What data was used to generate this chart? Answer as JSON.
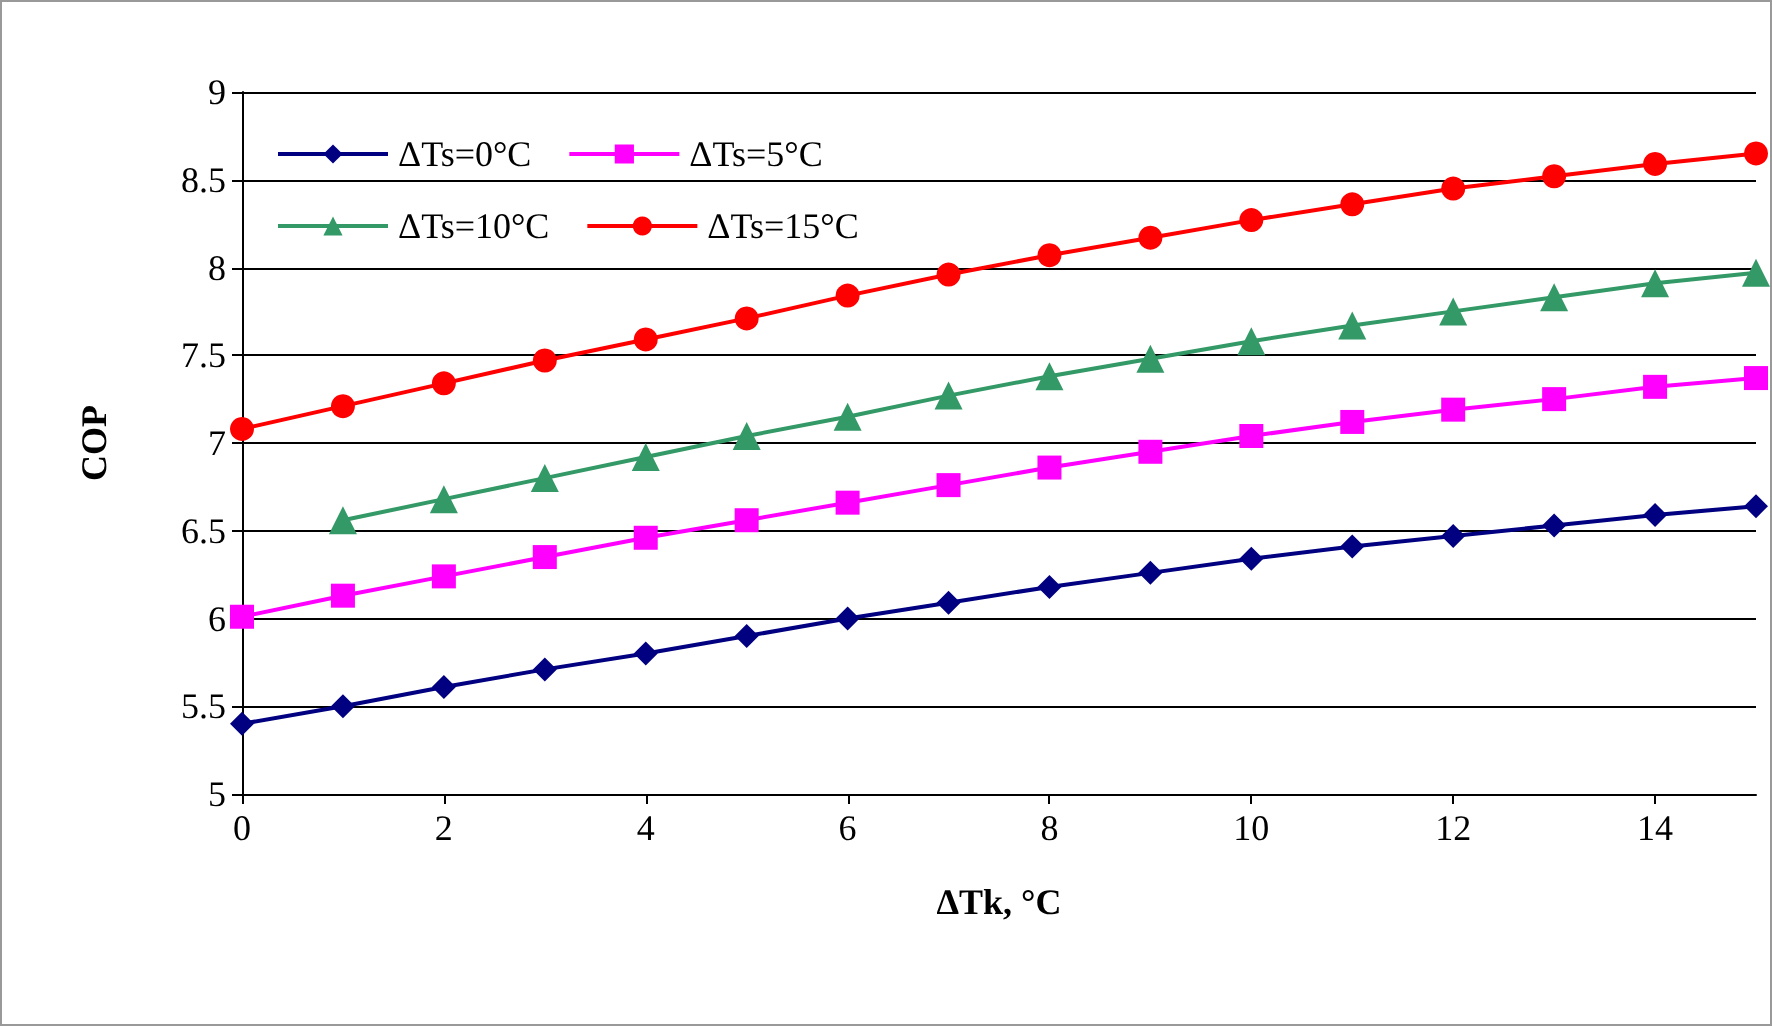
{
  "chart_data": {
    "type": "line",
    "xlabel": "ΔTk, °C",
    "ylabel": "COP",
    "x": [
      0,
      1,
      2,
      3,
      4,
      5,
      6,
      7,
      8,
      9,
      10,
      11,
      12,
      13,
      14,
      15
    ],
    "series": [
      {
        "name": "ΔTs=0°C",
        "color": "#000080",
        "marker": "diamond",
        "values": [
          5.4,
          5.5,
          5.61,
          5.71,
          5.8,
          5.9,
          6.0,
          6.09,
          6.18,
          6.26,
          6.34,
          6.41,
          6.47,
          6.53,
          6.59,
          6.64
        ]
      },
      {
        "name": "ΔTs=5°C",
        "color": "#ff00ff",
        "marker": "square",
        "values": [
          6.01,
          6.13,
          6.24,
          6.35,
          6.46,
          6.56,
          6.66,
          6.76,
          6.86,
          6.95,
          7.04,
          7.12,
          7.19,
          7.25,
          7.32,
          7.37
        ]
      },
      {
        "name": "ΔTs=10°C",
        "color": "#339966",
        "marker": "triangle",
        "values": [
          null,
          6.56,
          6.68,
          6.8,
          6.92,
          7.04,
          7.15,
          7.27,
          7.38,
          7.48,
          7.58,
          7.67,
          7.75,
          7.83,
          7.91,
          7.97
        ]
      },
      {
        "name": "ΔTs=15°C",
        "color": "#ff0000",
        "marker": "circle",
        "values": [
          7.08,
          7.21,
          7.34,
          7.47,
          7.59,
          7.71,
          7.84,
          7.96,
          8.07,
          8.17,
          8.27,
          8.36,
          8.45,
          8.52,
          8.59,
          8.65
        ]
      }
    ],
    "xlim": [
      0,
      15
    ],
    "xticks": [
      0,
      2,
      4,
      6,
      8,
      10,
      12,
      14
    ],
    "ylim": [
      5,
      9
    ],
    "yticks": [
      5,
      5.5,
      6,
      6.5,
      7,
      7.5,
      8,
      8.5,
      9
    ],
    "grid": "y",
    "legend": "top left"
  }
}
